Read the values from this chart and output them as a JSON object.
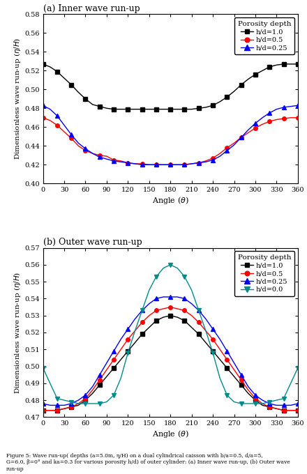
{
  "title_a": "(a) Inner wave run-up",
  "title_b": "(b) Outer wave run-up",
  "xlabel": "Angle ($\\theta$)",
  "ylabel_a": "Dimensionless wave run-up ($\\eta/H$)",
  "ylabel_b": "Dimensionless wave run-up ($\\eta/H$)",
  "legend_title": "Porosity depth",
  "xlim": [
    0,
    360
  ],
  "xticks": [
    0,
    30,
    60,
    90,
    120,
    150,
    180,
    210,
    240,
    270,
    300,
    330,
    360
  ],
  "panel_a": {
    "ylim": [
      0.4,
      0.58
    ],
    "yticks": [
      0.4,
      0.42,
      0.44,
      0.46,
      0.48,
      0.5,
      0.52,
      0.54,
      0.56,
      0.58
    ],
    "series": [
      {
        "label": "h/d=1.0",
        "color": "#000000",
        "marker": "s",
        "angles": [
          0,
          10,
          20,
          30,
          40,
          50,
          60,
          70,
          80,
          90,
          100,
          110,
          120,
          130,
          140,
          150,
          160,
          170,
          180,
          190,
          200,
          210,
          220,
          230,
          240,
          250,
          260,
          270,
          280,
          290,
          300,
          310,
          320,
          330,
          340,
          350,
          360
        ],
        "values": [
          0.527,
          0.524,
          0.519,
          0.512,
          0.505,
          0.497,
          0.49,
          0.484,
          0.482,
          0.48,
          0.479,
          0.479,
          0.479,
          0.479,
          0.479,
          0.479,
          0.479,
          0.479,
          0.479,
          0.479,
          0.479,
          0.479,
          0.48,
          0.481,
          0.483,
          0.487,
          0.492,
          0.498,
          0.505,
          0.511,
          0.516,
          0.52,
          0.524,
          0.526,
          0.527,
          0.527,
          0.527
        ]
      },
      {
        "label": "h/d=0.5",
        "color": "#ff0000",
        "marker": "o",
        "angles": [
          0,
          10,
          20,
          30,
          40,
          50,
          60,
          70,
          80,
          90,
          100,
          110,
          120,
          130,
          140,
          150,
          160,
          170,
          180,
          190,
          200,
          210,
          220,
          230,
          240,
          250,
          260,
          270,
          280,
          290,
          300,
          310,
          320,
          330,
          340,
          350,
          360
        ],
        "values": [
          0.47,
          0.467,
          0.462,
          0.455,
          0.448,
          0.44,
          0.435,
          0.432,
          0.43,
          0.429,
          0.425,
          0.424,
          0.422,
          0.421,
          0.421,
          0.42,
          0.42,
          0.42,
          0.42,
          0.42,
          0.42,
          0.421,
          0.422,
          0.424,
          0.427,
          0.432,
          0.438,
          0.443,
          0.449,
          0.454,
          0.459,
          0.463,
          0.466,
          0.468,
          0.469,
          0.47,
          0.47
        ]
      },
      {
        "label": "h/d=0.25",
        "color": "#0000ff",
        "marker": "^",
        "angles": [
          0,
          10,
          20,
          30,
          40,
          50,
          60,
          70,
          80,
          90,
          100,
          110,
          120,
          130,
          140,
          150,
          160,
          170,
          180,
          190,
          200,
          210,
          220,
          230,
          240,
          250,
          260,
          270,
          280,
          290,
          300,
          310,
          320,
          330,
          340,
          350,
          360
        ],
        "values": [
          0.483,
          0.479,
          0.472,
          0.462,
          0.452,
          0.443,
          0.437,
          0.432,
          0.428,
          0.426,
          0.424,
          0.423,
          0.422,
          0.421,
          0.42,
          0.42,
          0.42,
          0.42,
          0.42,
          0.42,
          0.42,
          0.421,
          0.422,
          0.423,
          0.425,
          0.429,
          0.435,
          0.441,
          0.449,
          0.457,
          0.464,
          0.47,
          0.475,
          0.479,
          0.481,
          0.482,
          0.483
        ]
      }
    ]
  },
  "panel_b": {
    "ylim": [
      0.47,
      0.57
    ],
    "yticks": [
      0.47,
      0.48,
      0.49,
      0.5,
      0.51,
      0.52,
      0.53,
      0.54,
      0.55,
      0.56,
      0.57
    ],
    "series": [
      {
        "label": "h/d=1.0",
        "color": "#000000",
        "marker": "s",
        "angles": [
          0,
          10,
          20,
          30,
          40,
          50,
          60,
          70,
          80,
          90,
          100,
          110,
          120,
          130,
          140,
          150,
          160,
          170,
          180,
          190,
          200,
          210,
          220,
          230,
          240,
          250,
          260,
          270,
          280,
          290,
          300,
          310,
          320,
          330,
          340,
          350,
          360
        ],
        "values": [
          0.474,
          0.474,
          0.474,
          0.475,
          0.476,
          0.477,
          0.48,
          0.484,
          0.489,
          0.494,
          0.499,
          0.504,
          0.509,
          0.514,
          0.519,
          0.523,
          0.527,
          0.529,
          0.53,
          0.529,
          0.527,
          0.523,
          0.519,
          0.514,
          0.509,
          0.504,
          0.499,
          0.494,
          0.489,
          0.484,
          0.48,
          0.477,
          0.476,
          0.475,
          0.474,
          0.474,
          0.474
        ]
      },
      {
        "label": "h/d=0.5",
        "color": "#ff0000",
        "marker": "o",
        "angles": [
          0,
          10,
          20,
          30,
          40,
          50,
          60,
          70,
          80,
          90,
          100,
          110,
          120,
          130,
          140,
          150,
          160,
          170,
          180,
          190,
          200,
          210,
          220,
          230,
          240,
          250,
          260,
          270,
          280,
          290,
          300,
          310,
          320,
          330,
          340,
          350,
          360
        ],
        "values": [
          0.474,
          0.474,
          0.474,
          0.475,
          0.476,
          0.478,
          0.481,
          0.486,
          0.492,
          0.498,
          0.504,
          0.51,
          0.516,
          0.521,
          0.526,
          0.53,
          0.533,
          0.534,
          0.535,
          0.534,
          0.533,
          0.53,
          0.526,
          0.521,
          0.516,
          0.51,
          0.504,
          0.498,
          0.492,
          0.486,
          0.481,
          0.478,
          0.476,
          0.475,
          0.474,
          0.474,
          0.474
        ]
      },
      {
        "label": "h/d=0.25",
        "color": "#0000ff",
        "marker": "^",
        "angles": [
          0,
          10,
          20,
          30,
          40,
          50,
          60,
          70,
          80,
          90,
          100,
          110,
          120,
          130,
          140,
          150,
          160,
          170,
          180,
          190,
          200,
          210,
          220,
          230,
          240,
          250,
          260,
          270,
          280,
          290,
          300,
          310,
          320,
          330,
          340,
          350,
          360
        ],
        "values": [
          0.478,
          0.477,
          0.477,
          0.477,
          0.478,
          0.48,
          0.483,
          0.488,
          0.495,
          0.502,
          0.509,
          0.516,
          0.522,
          0.528,
          0.533,
          0.537,
          0.54,
          0.541,
          0.541,
          0.541,
          0.54,
          0.537,
          0.533,
          0.528,
          0.522,
          0.516,
          0.509,
          0.502,
          0.495,
          0.488,
          0.483,
          0.48,
          0.478,
          0.477,
          0.477,
          0.477,
          0.478
        ]
      },
      {
        "label": "h/d=0.0",
        "color": "#008B8B",
        "marker": "v",
        "angles": [
          0,
          10,
          20,
          30,
          40,
          50,
          60,
          70,
          80,
          90,
          100,
          110,
          120,
          130,
          140,
          150,
          160,
          170,
          180,
          190,
          200,
          210,
          220,
          230,
          240,
          250,
          260,
          270,
          280,
          290,
          300,
          310,
          320,
          330,
          340,
          350,
          360
        ],
        "values": [
          0.499,
          0.49,
          0.481,
          0.48,
          0.479,
          0.478,
          0.478,
          0.478,
          0.478,
          0.479,
          0.483,
          0.493,
          0.508,
          0.521,
          0.533,
          0.545,
          0.553,
          0.558,
          0.56,
          0.558,
          0.553,
          0.545,
          0.533,
          0.521,
          0.508,
          0.493,
          0.483,
          0.479,
          0.478,
          0.478,
          0.478,
          0.478,
          0.479,
          0.48,
          0.481,
          0.49,
          0.499
        ]
      }
    ]
  },
  "figure_caption": "Figure 5: Wave run-up( depths (a=5.0m, η/H) on a dual cylindrical caisson with b/a=0.5, d/a=5,\nG=6.0, β=0° and ka=0.3 for various porosity h/d) of outer cylinder: (a) Inner wave run-up, (b) Outer wave run-up",
  "tick_fontsize": 7,
  "label_fontsize": 8,
  "title_fontsize": 9,
  "legend_fontsize": 7,
  "linewidth": 1.0,
  "markersize": 4,
  "markevery": 2
}
